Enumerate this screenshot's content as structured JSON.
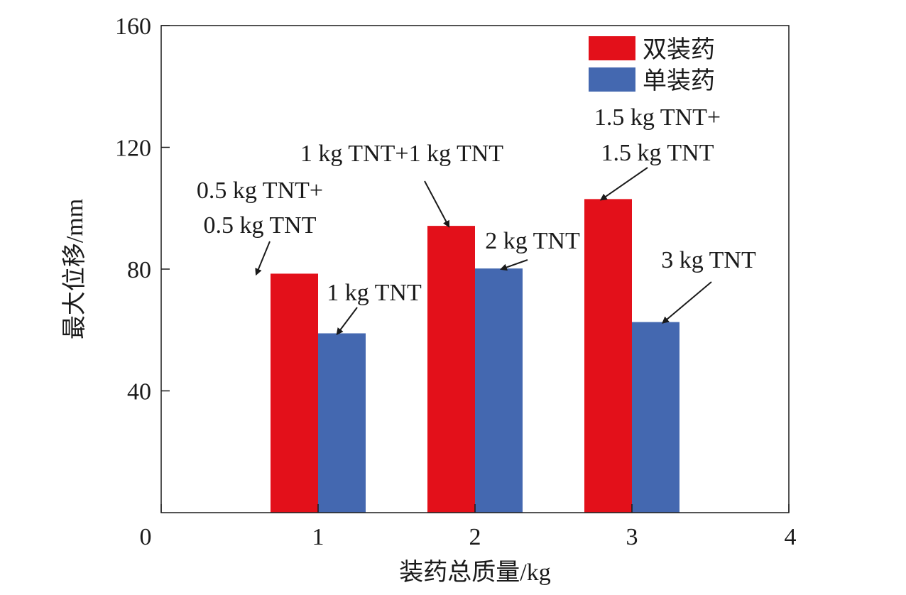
{
  "chart_data": {
    "type": "bar",
    "xlabel": "装药总质量/kg",
    "ylabel": "最大位移/mm",
    "xlim": [
      0,
      4
    ],
    "ylim": [
      0,
      160
    ],
    "x_ticks": [
      0,
      1,
      2,
      3,
      4
    ],
    "y_ticks": [
      40,
      80,
      120,
      160
    ],
    "grid": false,
    "legend_position": "top-right",
    "categories": [
      1,
      2,
      3
    ],
    "series": [
      {
        "name": "双装药",
        "color": "#e3101a",
        "values": [
          78.5,
          94.2,
          103.0
        ]
      },
      {
        "name": "单装药",
        "color": "#4468b0",
        "values": [
          58.9,
          80.2,
          62.6
        ]
      }
    ],
    "annotations": [
      {
        "series": 0,
        "category": 1,
        "lines": [
          "0.5 kg TNT+",
          "0.5 kg TNT"
        ]
      },
      {
        "series": 1,
        "category": 1,
        "lines": [
          "1 kg TNT"
        ]
      },
      {
        "series": 0,
        "category": 2,
        "lines": [
          "1 kg TNT+1 kg TNT"
        ]
      },
      {
        "series": 1,
        "category": 2,
        "lines": [
          "2 kg TNT"
        ]
      },
      {
        "series": 0,
        "category": 3,
        "lines": [
          "1.5 kg TNT+",
          "1.5 kg TNT"
        ]
      },
      {
        "series": 1,
        "category": 3,
        "lines": [
          "3 kg TNT"
        ]
      }
    ]
  }
}
